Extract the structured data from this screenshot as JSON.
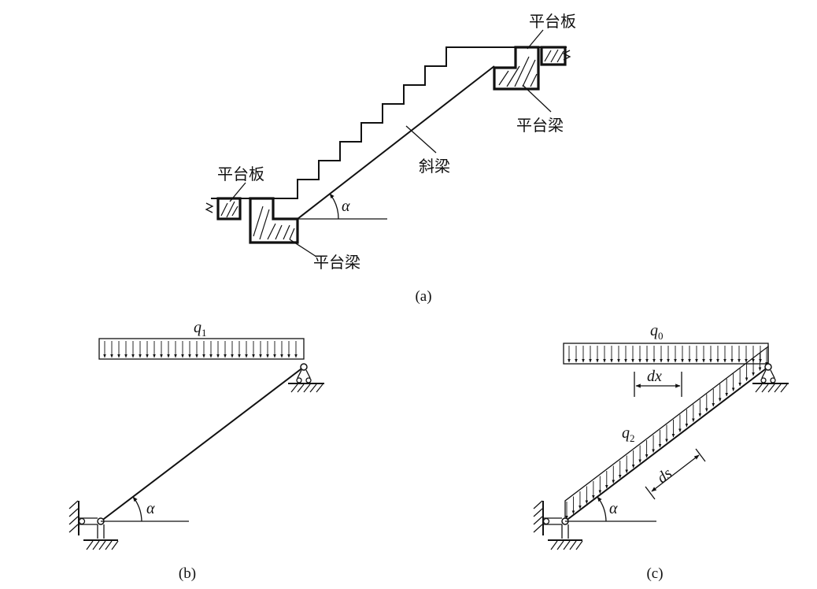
{
  "panel_a": {
    "label_landing_slab_top": "平台板",
    "label_landing_beam_top": "平台梁",
    "label_inclined_beam": "斜梁",
    "label_landing_slab_bottom": "平台板",
    "label_landing_beam_bottom": "平台梁",
    "angle_symbol": "α",
    "caption": "(a)"
  },
  "panel_b": {
    "load_symbol": "q",
    "load_subscript": "1",
    "angle_symbol": "α",
    "caption": "(b)"
  },
  "panel_c": {
    "load_top_symbol": "q",
    "load_top_subscript": "0",
    "load_inclined_symbol": "q",
    "load_inclined_subscript": "2",
    "dx_label": "dx",
    "ds_label": "ds",
    "angle_symbol": "α",
    "caption": "(c)"
  }
}
